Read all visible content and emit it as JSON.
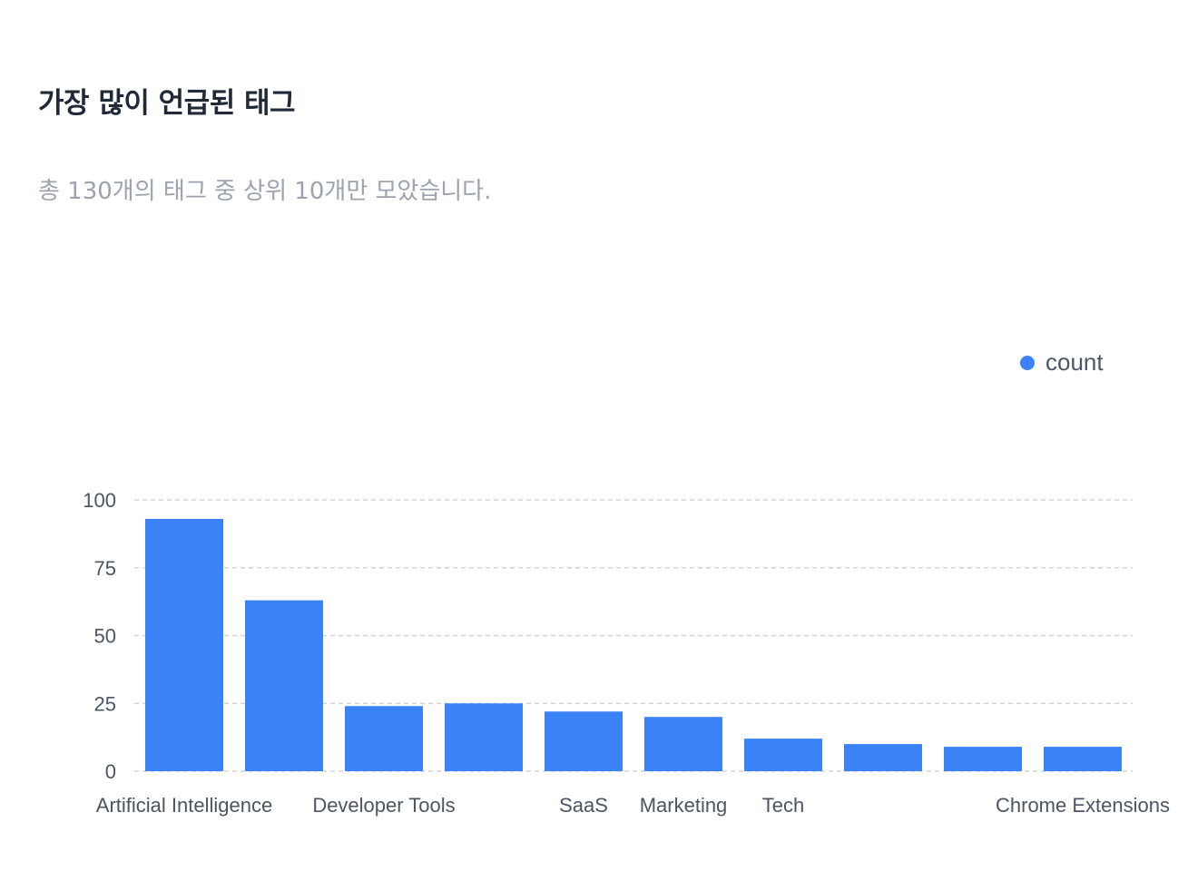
{
  "header": {
    "title": "가장 많이 언급된 태그",
    "subtitle": "총 130개의 태그 중 상위 10개만 모았습니다."
  },
  "colors": {
    "bar": "#3b82f6",
    "grid": "#d1d5db",
    "title": "#1f2937",
    "subtitle": "#9ca3af",
    "axis_text": "#4b5563"
  },
  "chart_data": {
    "type": "bar",
    "categories": [
      "Artificial Intelligence",
      "",
      "Developer Tools",
      "",
      "SaaS",
      "Marketing",
      "Tech",
      "",
      "",
      "Chrome Extensions"
    ],
    "series": [
      {
        "name": "count",
        "values": [
          93,
          63,
          24,
          25,
          22,
          20,
          12,
          10,
          9,
          9
        ]
      }
    ],
    "ylim": [
      0,
      100
    ],
    "yticks": [
      0,
      25,
      50,
      75,
      100
    ],
    "grid": true,
    "legend": "top-right",
    "xlabel": "",
    "ylabel": ""
  }
}
